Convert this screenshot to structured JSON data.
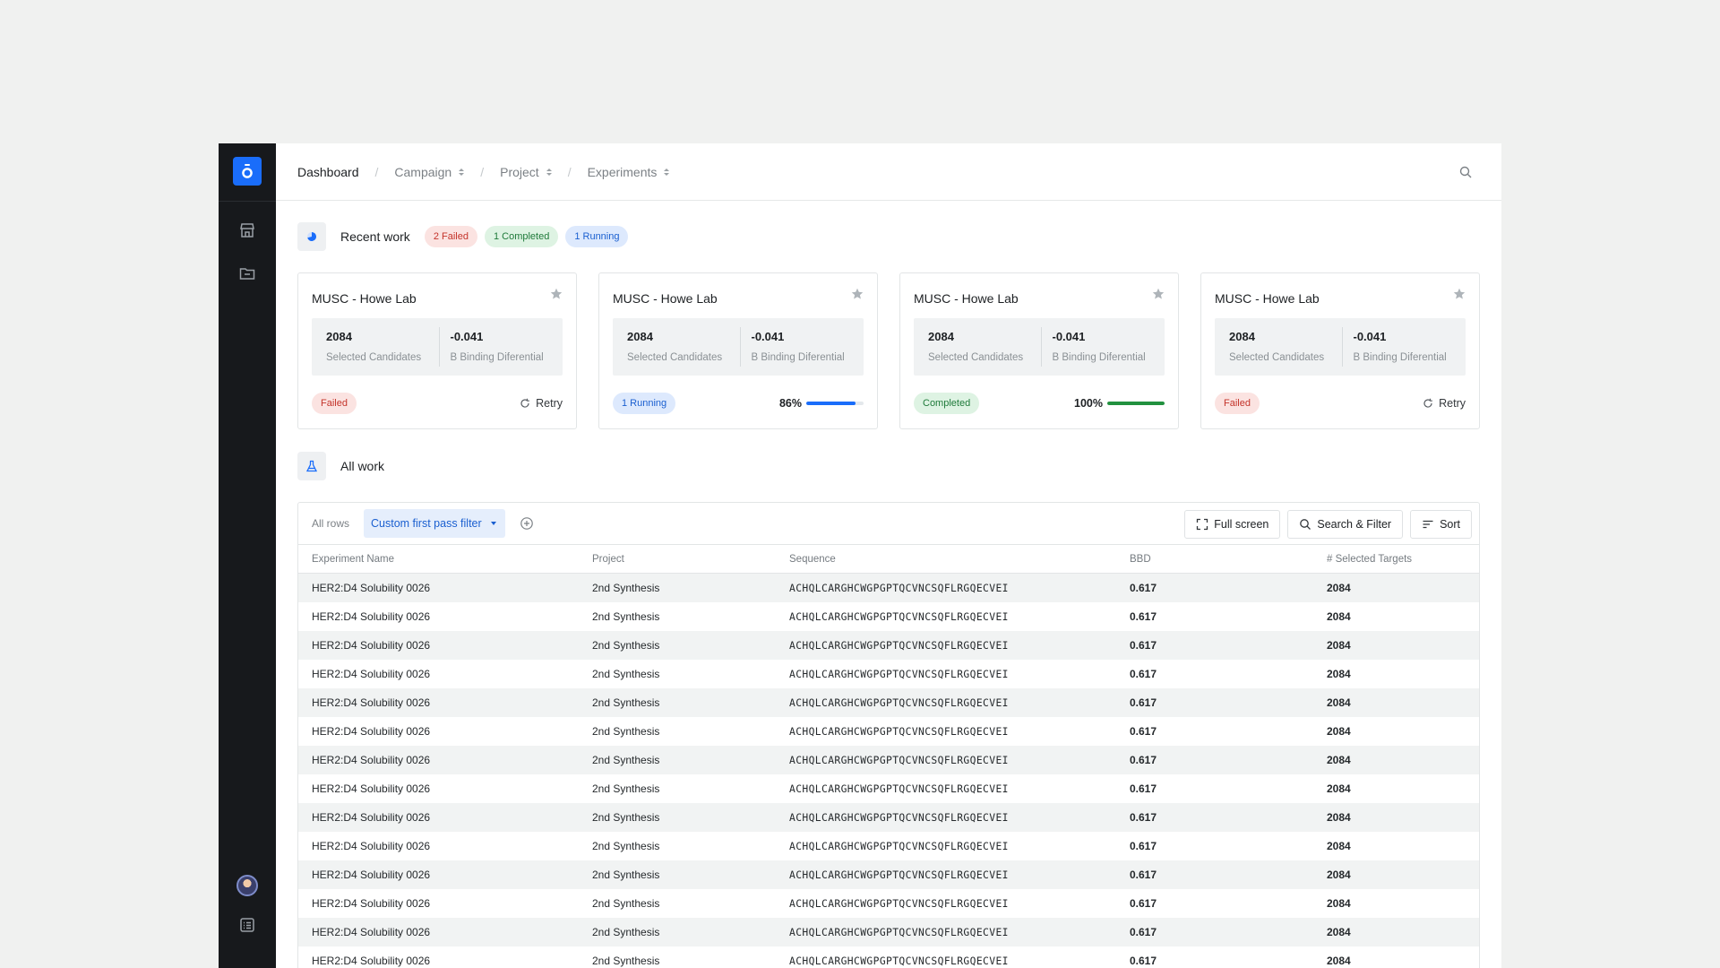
{
  "breadcrumb": {
    "items": [
      {
        "label": "Dashboard",
        "active": true,
        "dropdown": false
      },
      {
        "label": "Campaign",
        "active": false,
        "dropdown": true
      },
      {
        "label": "Project",
        "active": false,
        "dropdown": true
      },
      {
        "label": "Experiments",
        "active": false,
        "dropdown": true
      }
    ]
  },
  "recent": {
    "title": "Recent work",
    "badges": {
      "failed": "2 Failed",
      "completed": "1 Completed",
      "running": "1 Running"
    }
  },
  "cards": [
    {
      "title": "MUSC - Howe Lab",
      "m1_value": "2084",
      "m1_label": "Selected Candidates",
      "m2_value": "-0.041",
      "m2_label": "B Binding Diferential",
      "status": "Failed",
      "status_type": "failed",
      "action": "Retry",
      "progress": null
    },
    {
      "title": "MUSC - Howe Lab",
      "m1_value": "2084",
      "m1_label": "Selected Candidates",
      "m2_value": "-0.041",
      "m2_label": "B Binding Diferential",
      "status": "1 Running",
      "status_type": "running",
      "progress_label": "86%",
      "progress": 0.86,
      "color": "#1a6dfa"
    },
    {
      "title": "MUSC - Howe Lab",
      "m1_value": "2084",
      "m1_label": "Selected Candidates",
      "m2_value": "-0.041",
      "m2_label": "B Binding Diferential",
      "status": "Completed",
      "status_type": "completed",
      "progress_label": "100%",
      "progress": 1.0,
      "color": "#22913f"
    },
    {
      "title": "MUSC - Howe Lab",
      "m1_value": "2084",
      "m1_label": "Selected Candidates",
      "m2_value": "-0.041",
      "m2_label": "B Binding Diferential",
      "status": "Failed",
      "status_type": "failed",
      "action": "Retry",
      "progress": null
    }
  ],
  "all_work": {
    "title": "All work",
    "tab_all": "All rows",
    "tab_filter": "Custom first pass filter",
    "buttons": {
      "fullscreen": "Full screen",
      "search_filter": "Search & Filter",
      "sort": "Sort"
    }
  },
  "table": {
    "columns": [
      "Experiment Name",
      "Project",
      "Sequence",
      "BBD",
      "# Selected Targets"
    ],
    "rows": [
      [
        "HER2:D4 Solubility 0026",
        "2nd Synthesis",
        "ACHQLCARGHCWGPGPTQCVNCSQFLRGQECVEI",
        "0.617",
        "2084"
      ],
      [
        "HER2:D4 Solubility 0026",
        "2nd Synthesis",
        "ACHQLCARGHCWGPGPTQCVNCSQFLRGQECVEI",
        "0.617",
        "2084"
      ],
      [
        "HER2:D4 Solubility 0026",
        "2nd Synthesis",
        "ACHQLCARGHCWGPGPTQCVNCSQFLRGQECVEI",
        "0.617",
        "2084"
      ],
      [
        "HER2:D4 Solubility 0026",
        "2nd Synthesis",
        "ACHQLCARGHCWGPGPTQCVNCSQFLRGQECVEI",
        "0.617",
        "2084"
      ],
      [
        "HER2:D4 Solubility 0026",
        "2nd Synthesis",
        "ACHQLCARGHCWGPGPTQCVNCSQFLRGQECVEI",
        "0.617",
        "2084"
      ],
      [
        "HER2:D4 Solubility 0026",
        "2nd Synthesis",
        "ACHQLCARGHCWGPGPTQCVNCSQFLRGQECVEI",
        "0.617",
        "2084"
      ],
      [
        "HER2:D4 Solubility 0026",
        "2nd Synthesis",
        "ACHQLCARGHCWGPGPTQCVNCSQFLRGQECVEI",
        "0.617",
        "2084"
      ],
      [
        "HER2:D4 Solubility 0026",
        "2nd Synthesis",
        "ACHQLCARGHCWGPGPTQCVNCSQFLRGQECVEI",
        "0.617",
        "2084"
      ],
      [
        "HER2:D4 Solubility 0026",
        "2nd Synthesis",
        "ACHQLCARGHCWGPGPTQCVNCSQFLRGQECVEI",
        "0.617",
        "2084"
      ],
      [
        "HER2:D4 Solubility 0026",
        "2nd Synthesis",
        "ACHQLCARGHCWGPGPTQCVNCSQFLRGQECVEI",
        "0.617",
        "2084"
      ],
      [
        "HER2:D4 Solubility 0026",
        "2nd Synthesis",
        "ACHQLCARGHCWGPGPTQCVNCSQFLRGQECVEI",
        "0.617",
        "2084"
      ],
      [
        "HER2:D4 Solubility 0026",
        "2nd Synthesis",
        "ACHQLCARGHCWGPGPTQCVNCSQFLRGQECVEI",
        "0.617",
        "2084"
      ],
      [
        "HER2:D4 Solubility 0026",
        "2nd Synthesis",
        "ACHQLCARGHCWGPGPTQCVNCSQFLRGQECVEI",
        "0.617",
        "2084"
      ],
      [
        "HER2:D4 Solubility 0026",
        "2nd Synthesis",
        "ACHQLCARGHCWGPGPTQCVNCSQFLRGQECVEI",
        "0.617",
        "2084"
      ]
    ]
  },
  "icons": {
    "logo": "logo-icon",
    "store": "store-icon",
    "folder": "folder-icon",
    "avatar": "avatar",
    "list": "list-icon",
    "search": "search-icon",
    "recent": "pie-chart-icon",
    "all_work": "flask-icon",
    "star": "star-icon",
    "retry": "retry-icon",
    "add": "add-circle-icon",
    "fullscreen": "fullscreen-icon",
    "sort": "sort-icon"
  },
  "colors": {
    "accent": "#1a6dfa",
    "sidebar": "#17191c",
    "failed": "#c4332a",
    "completed": "#1f7a3a",
    "running": "#1a5fd0"
  }
}
